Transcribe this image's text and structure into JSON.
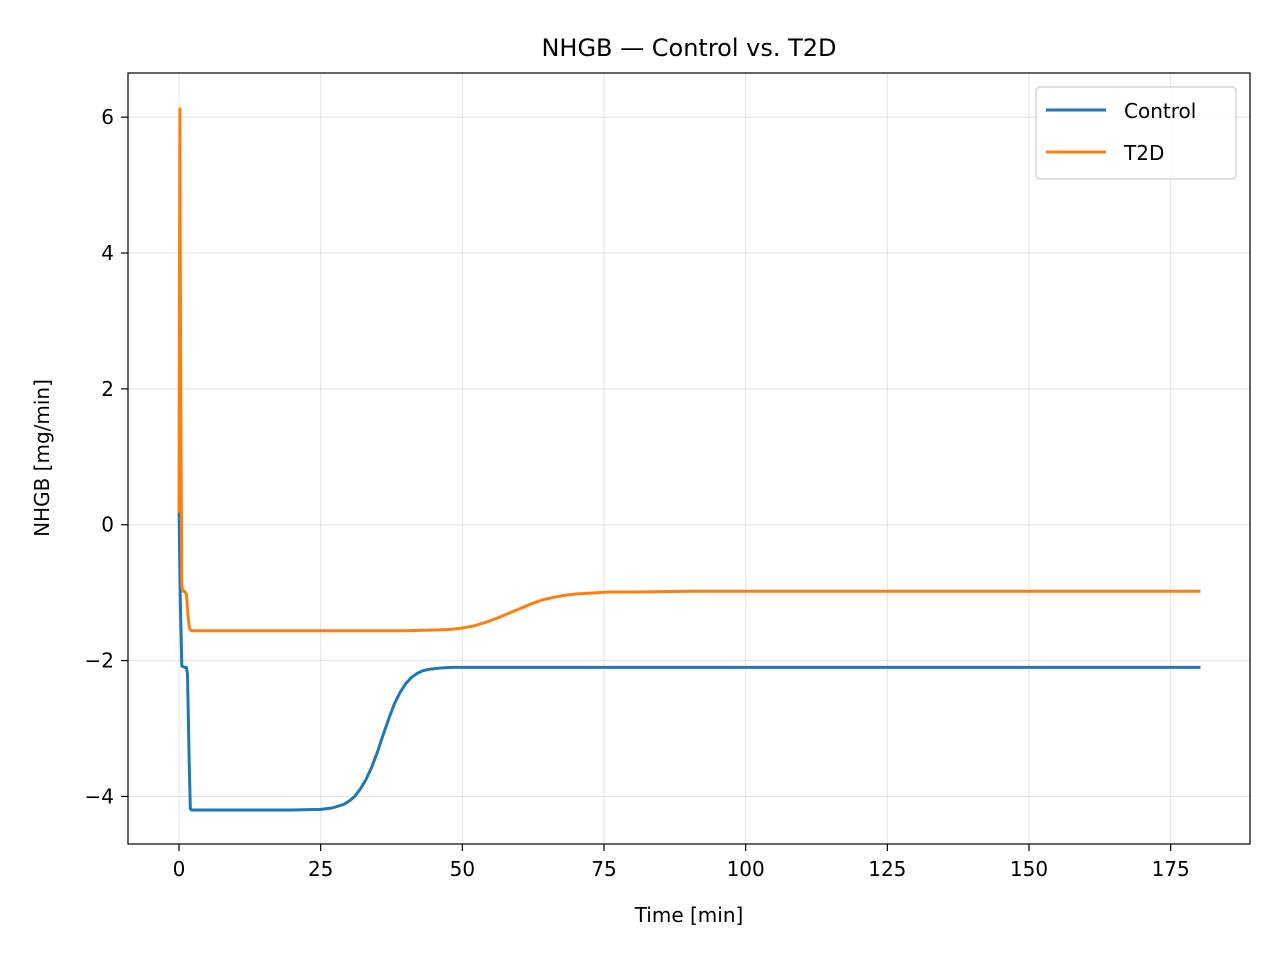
{
  "chart_data": {
    "type": "line",
    "title": "NHGB — Control vs. T2D",
    "xlabel": "Time [min]",
    "ylabel": "NHGB [mg/min]",
    "xlim": [
      -9,
      189
    ],
    "ylim": [
      -4.7,
      6.65
    ],
    "xticks": [
      0,
      25,
      50,
      75,
      100,
      125,
      150,
      175
    ],
    "xtick_labels": [
      "0",
      "25",
      "50",
      "75",
      "100",
      "125",
      "150",
      "175"
    ],
    "yticks": [
      -4,
      -2,
      0,
      2,
      4,
      6
    ],
    "ytick_labels": [
      "−4",
      "−2",
      "0",
      "2",
      "4",
      "6"
    ],
    "grid": true,
    "legend_position": "top-right",
    "series": [
      {
        "name": "Control",
        "color": "#1f77b4",
        "x": [
          0,
          0.2,
          0.5,
          1,
          1.3,
          1.5,
          1.8,
          2,
          2.2,
          2.5,
          3,
          5,
          10,
          15,
          20,
          25,
          27,
          29,
          30,
          31,
          32,
          33,
          34,
          35,
          36,
          37,
          38,
          39,
          40,
          41,
          42,
          43,
          44,
          45,
          46,
          48,
          50,
          55,
          60,
          80,
          100,
          120,
          140,
          160,
          180
        ],
        "y": [
          0.3,
          -1.0,
          -2.08,
          -2.1,
          -2.1,
          -2.2,
          -3.5,
          -4.18,
          -4.2,
          -4.2,
          -4.2,
          -4.2,
          -4.2,
          -4.2,
          -4.2,
          -4.19,
          -4.17,
          -4.12,
          -4.07,
          -4.0,
          -3.89,
          -3.75,
          -3.57,
          -3.35,
          -3.1,
          -2.86,
          -2.64,
          -2.47,
          -2.34,
          -2.25,
          -2.19,
          -2.15,
          -2.13,
          -2.12,
          -2.11,
          -2.1,
          -2.1,
          -2.1,
          -2.1,
          -2.1,
          -2.1,
          -2.1,
          -2.1,
          -2.1,
          -2.1
        ]
      },
      {
        "name": "T2D",
        "color": "#ff7f0e",
        "x": [
          0,
          0.15,
          0.3,
          0.5,
          0.7,
          1,
          1.3,
          1.6,
          1.8,
          2,
          2.2,
          2.5,
          3,
          5,
          10,
          20,
          30,
          40,
          45,
          48,
          50,
          52,
          54,
          56,
          58,
          60,
          62,
          64,
          66,
          68,
          70,
          72,
          74,
          76,
          80,
          90,
          100,
          120,
          140,
          160,
          180
        ],
        "y": [
          0.2,
          6.12,
          2.0,
          -0.9,
          -0.98,
          -0.98,
          -1.02,
          -1.35,
          -1.5,
          -1.55,
          -1.56,
          -1.56,
          -1.56,
          -1.56,
          -1.56,
          -1.56,
          -1.56,
          -1.56,
          -1.55,
          -1.54,
          -1.52,
          -1.49,
          -1.44,
          -1.38,
          -1.31,
          -1.24,
          -1.17,
          -1.11,
          -1.07,
          -1.04,
          -1.02,
          -1.01,
          -1.0,
          -0.99,
          -0.99,
          -0.98,
          -0.98,
          -0.98,
          -0.98,
          -0.98,
          -0.98
        ]
      }
    ]
  }
}
